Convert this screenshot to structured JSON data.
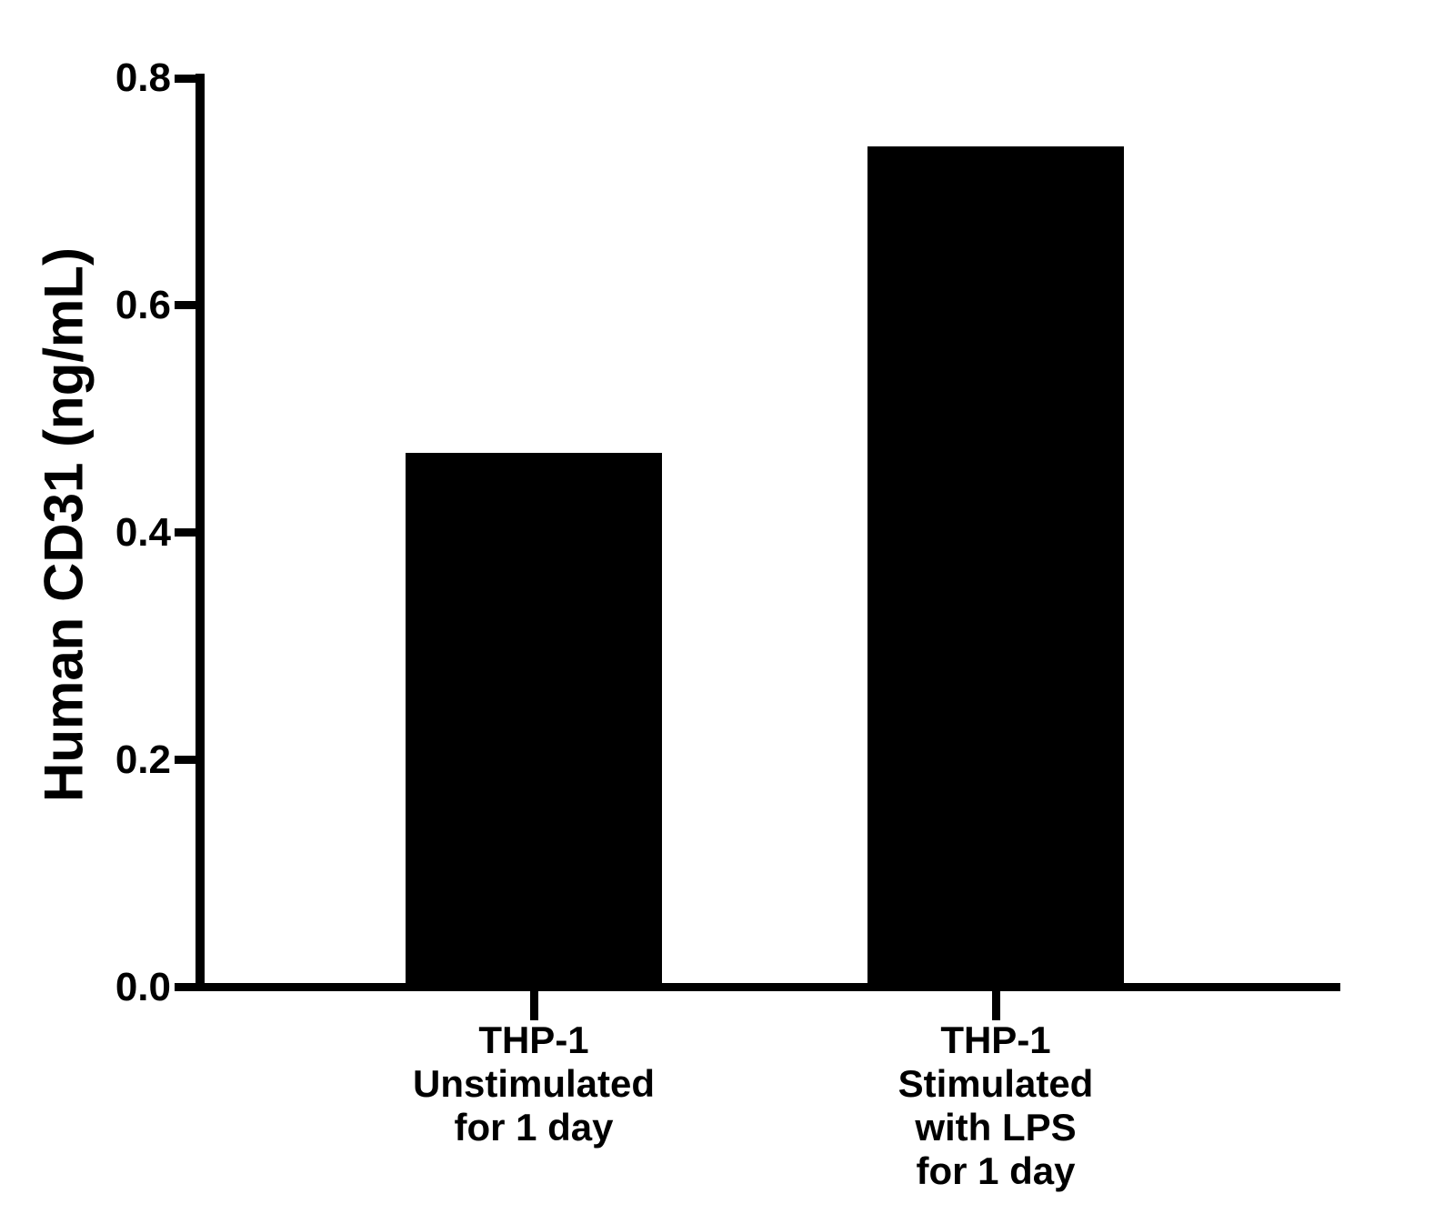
{
  "chart_data": {
    "type": "bar",
    "title": "",
    "xlabel": "",
    "ylabel": "Human CD31 (ng/mL)",
    "ylim": [
      0,
      0.8
    ],
    "grid": false,
    "legend_position": "none",
    "bar_color": "#000000",
    "axis_color": "#000000",
    "background_color": "#ffffff",
    "yticks": [
      {
        "value": 0.0,
        "label": "0.0"
      },
      {
        "value": 0.2,
        "label": "0.2"
      },
      {
        "value": 0.4,
        "label": "0.4"
      },
      {
        "value": 0.6,
        "label": "0.6"
      },
      {
        "value": 0.8,
        "label": "0.8"
      }
    ],
    "categories": [
      {
        "lines": [
          "THP-1",
          "Unstimulated",
          "for 1 day"
        ]
      },
      {
        "lines": [
          "THP-1",
          "Stimulated",
          "with LPS",
          "for 1 day"
        ]
      }
    ],
    "values": [
      0.47,
      0.74
    ]
  }
}
